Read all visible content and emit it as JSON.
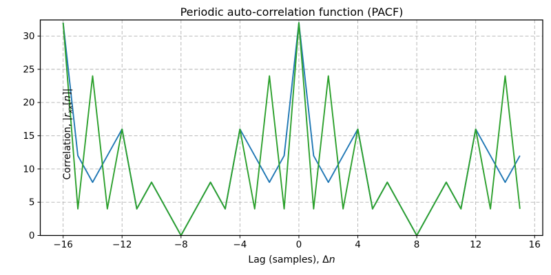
{
  "title": "Periodic auto-correlation function (PACF)",
  "xlabel_parts": [
    {
      "t": "Lag (samples), Δ",
      "s": "normal"
    },
    {
      "t": "n",
      "s": "italic"
    }
  ],
  "ylabel_parts": [
    {
      "t": "Correlation, |",
      "s": "normal"
    },
    {
      "t": "r",
      "s": "italic"
    },
    {
      "t": "xx",
      "s": "sub"
    },
    {
      "t": "[",
      "s": "normal"
    },
    {
      "t": "n",
      "s": "italic"
    },
    {
      "t": "]|",
      "s": "normal"
    }
  ],
  "chart_data": {
    "type": "line",
    "title": "Periodic auto-correlation function (PACF)",
    "xlabel": "Lag (samples), Δn",
    "ylabel": "Correlation, |r_xx[n]|",
    "x": [
      -16,
      -15,
      -14,
      -13,
      -12,
      -11,
      -10,
      -9,
      -8,
      -7,
      -6,
      -5,
      -4,
      -3,
      -2,
      -1,
      0,
      1,
      2,
      3,
      4,
      5,
      6,
      7,
      8,
      9,
      10,
      11,
      12,
      13,
      14,
      15
    ],
    "series": [
      {
        "name": "blue-series",
        "color": "#1f77b4",
        "values": [
          32,
          12,
          8,
          12,
          16,
          4,
          8,
          4,
          0,
          4,
          8,
          4,
          16,
          12,
          8,
          12,
          32,
          12,
          8,
          12,
          16,
          4,
          8,
          4,
          0,
          4,
          8,
          4,
          16,
          12,
          8,
          12
        ]
      },
      {
        "name": "green-series",
        "color": "#2ca02c",
        "values": [
          32,
          4,
          24,
          4,
          16,
          4,
          8,
          4,
          0,
          4,
          8,
          4,
          16,
          4,
          24,
          4,
          32,
          4,
          24,
          4,
          16,
          4,
          8,
          4,
          0,
          4,
          8,
          4,
          16,
          4,
          24,
          4
        ]
      }
    ],
    "xlim": [
      -17.55,
      16.55
    ],
    "ylim": [
      0,
      32.42
    ],
    "xticks": [
      -16,
      -12,
      -8,
      -4,
      0,
      4,
      8,
      12,
      16
    ],
    "xtick_labels": [
      "−16",
      "−12",
      "−8",
      "−4",
      "0",
      "4",
      "8",
      "12",
      "16"
    ],
    "yticks": [
      0,
      5,
      10,
      15,
      20,
      25,
      30
    ],
    "ytick_labels": [
      "0",
      "5",
      "10",
      "15",
      "20",
      "25",
      "30"
    ],
    "grid": true,
    "legend": null,
    "colors": {
      "grid": "#b0b0b0",
      "spine": "#000000",
      "background": "#ffffff"
    }
  }
}
